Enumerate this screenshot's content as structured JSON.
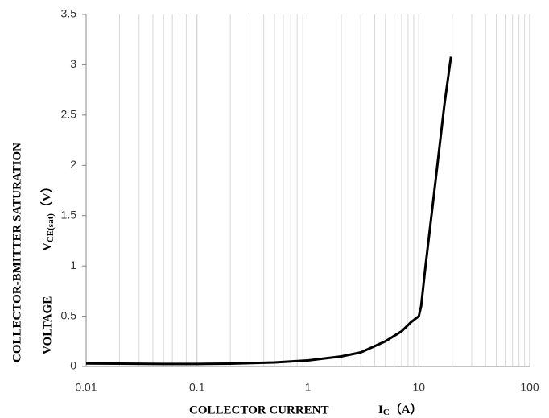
{
  "chart_data": {
    "type": "line",
    "xscale": "log",
    "xlabel": {
      "main": "COLLECTOR CURRENT",
      "symbol": "I",
      "sub": "C",
      "unit": "（A）"
    },
    "ylabel": {
      "main": "COLLECTOR-BMITTER SATURATION",
      "second": "VOLTAGE",
      "symbol": "V",
      "sub": "CE(sat)",
      "unit": "（V）"
    },
    "x": [
      0.01,
      0.02,
      0.05,
      0.1,
      0.2,
      0.5,
      1,
      2,
      3,
      5,
      7,
      8.5,
      10,
      10.5,
      11.5,
      14,
      17,
      19.5
    ],
    "series": [
      {
        "color": "#000000",
        "values": [
          0.03,
          0.028,
          0.025,
          0.025,
          0.028,
          0.04,
          0.06,
          0.1,
          0.14,
          0.25,
          0.35,
          0.44,
          0.5,
          0.6,
          1.0,
          1.8,
          2.6,
          3.08
        ]
      }
    ],
    "xlim": [
      0.01,
      100
    ],
    "ylim": [
      0,
      3.5
    ],
    "xticks": [
      0.01,
      0.1,
      1,
      10,
      100
    ],
    "yticks": [
      0,
      0.5,
      1,
      1.5,
      2,
      2.5,
      3,
      3.5
    ],
    "grid": "x"
  }
}
